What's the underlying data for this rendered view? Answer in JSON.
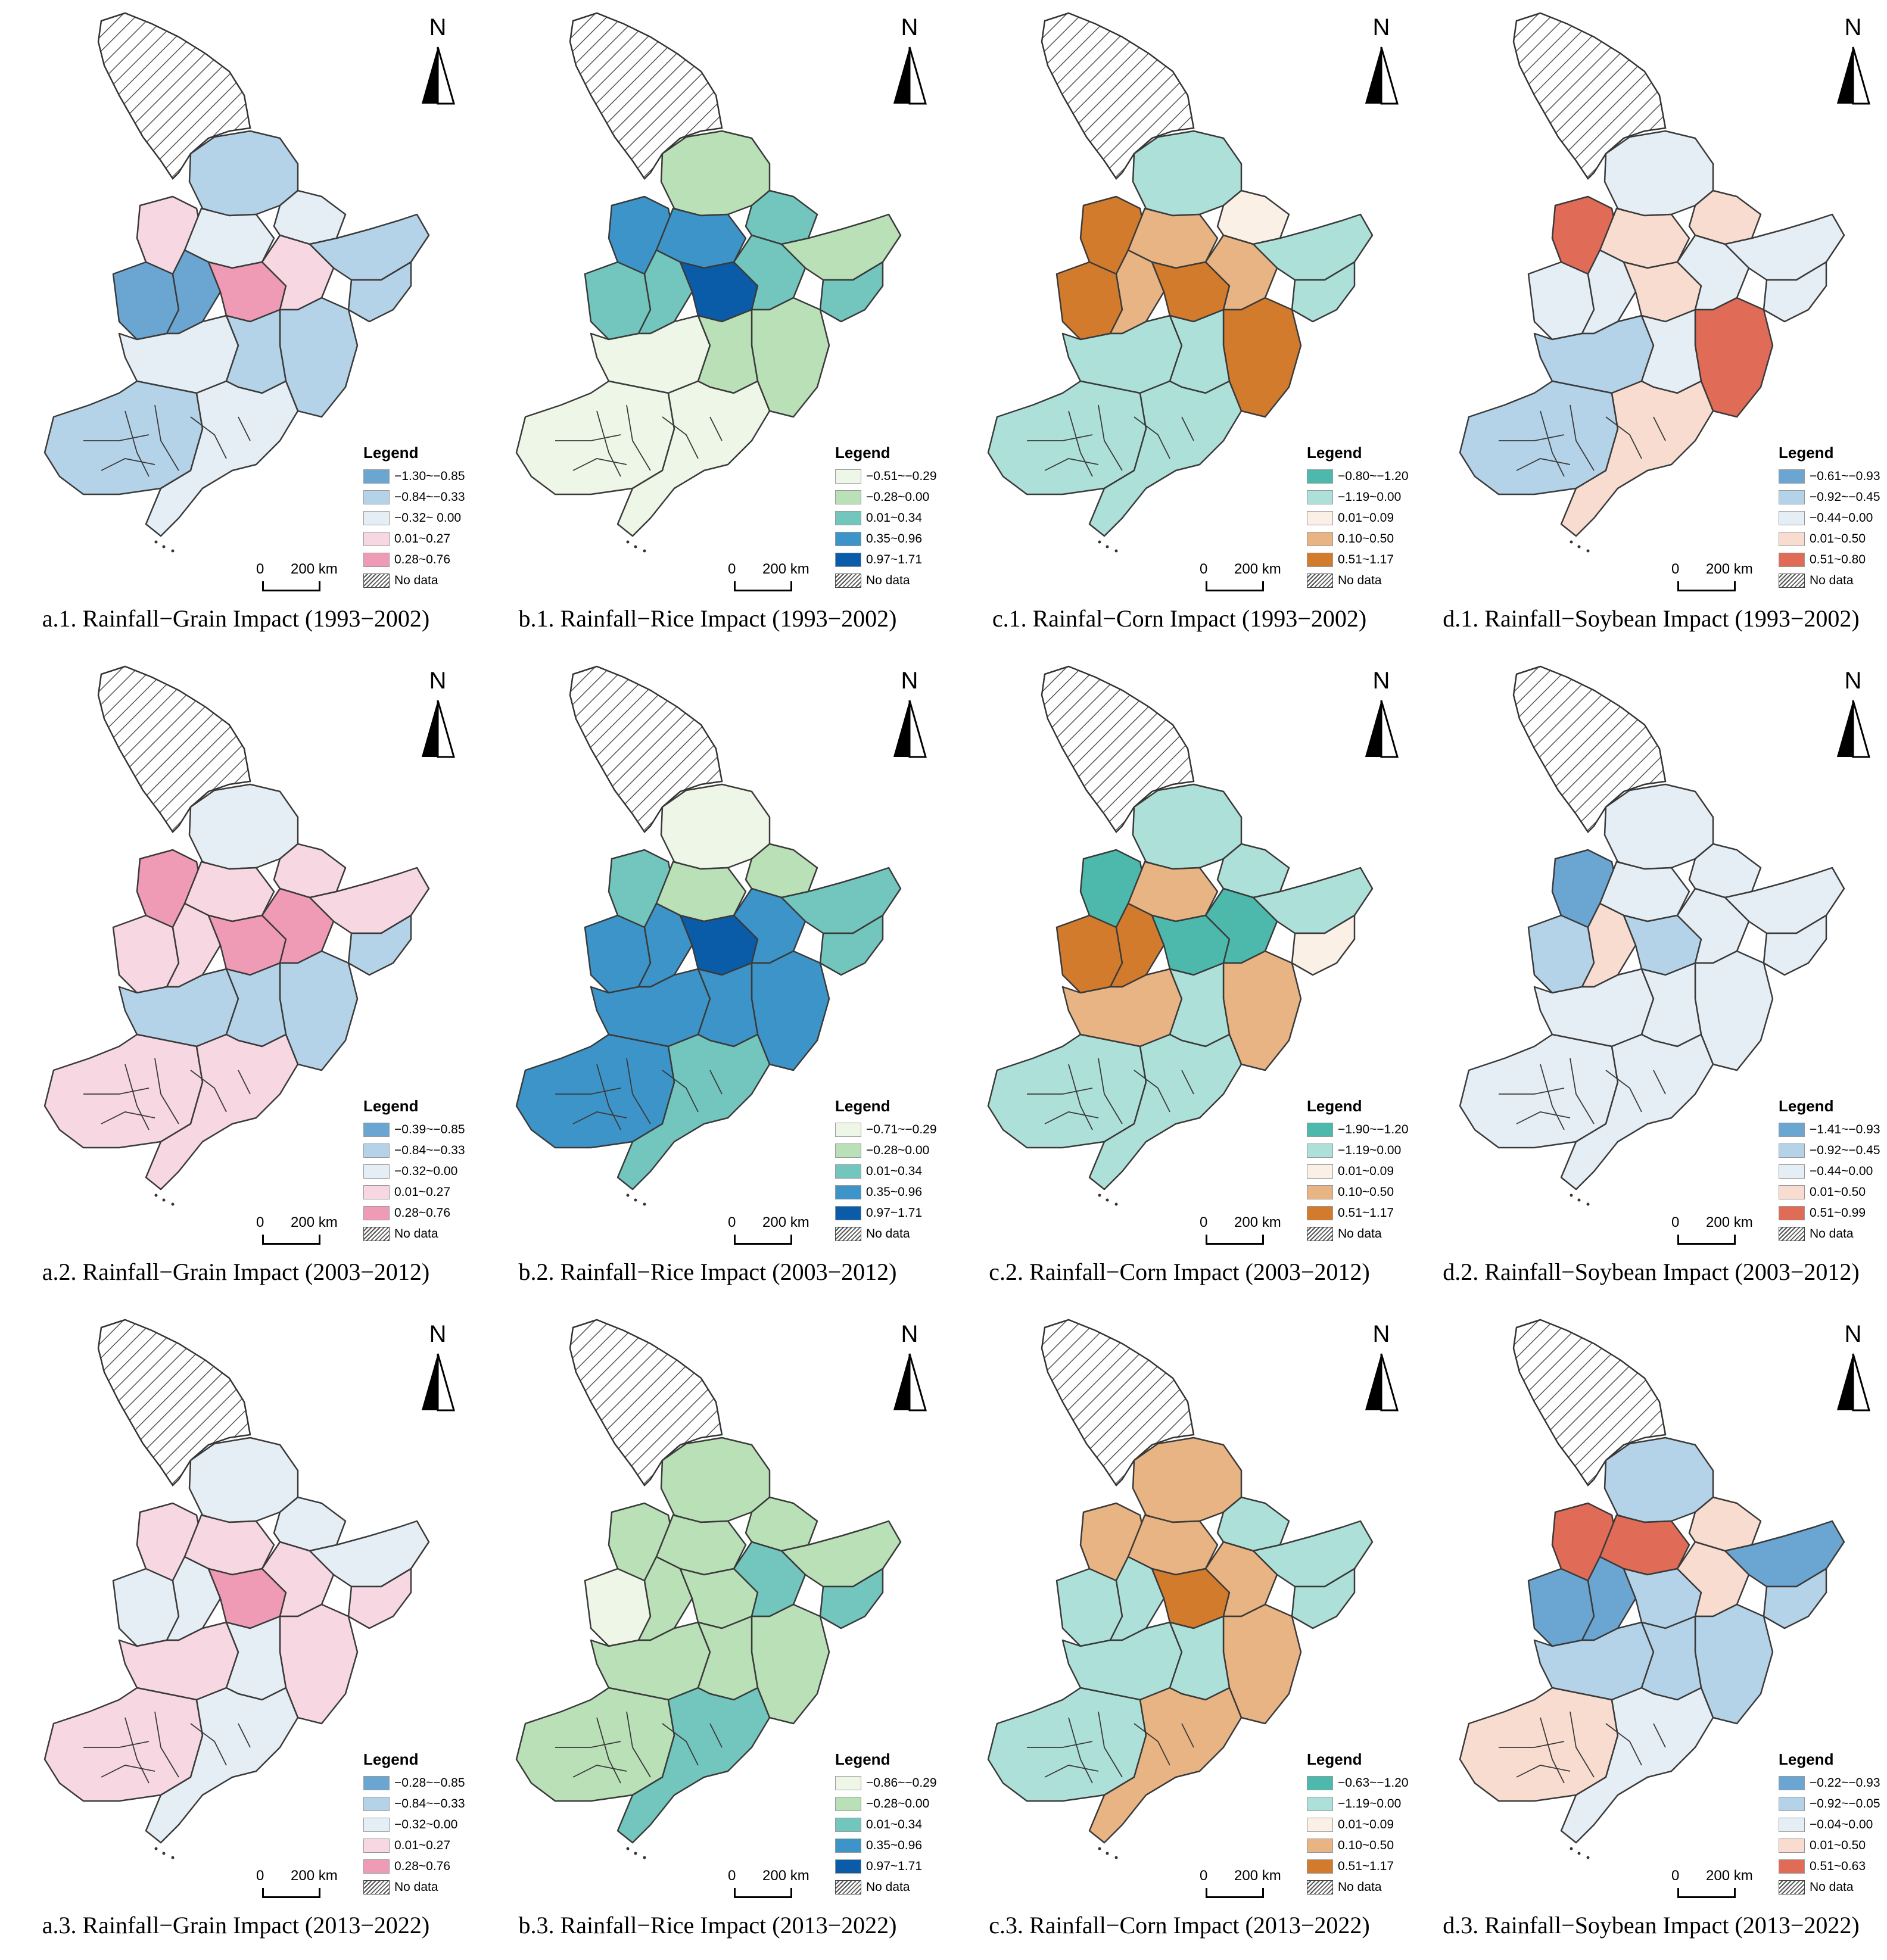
{
  "panels": [
    {
      "caption": "a.1. Rainfall−Grain Impact (1993−2002)",
      "legend_title": "Legend",
      "scheme": "grain",
      "legend": [
        "−1.30~−0.85",
        "−0.84~−0.33",
        "−0.32~ 0.00",
        "0.01~0.27",
        "0.28~0.76",
        "No data"
      ]
    },
    {
      "caption": "b.1. Rainfall−Rice Impact (1993−2002)",
      "legend_title": "Legend",
      "scheme": "rice",
      "legend": [
        "−0.51~−0.29",
        "−0.28~0.00",
        "0.01~0.34",
        "0.35~0.96",
        "0.97~1.71",
        "No data"
      ]
    },
    {
      "caption": "c.1. Rainfal−Corn Impact (1993−2002)",
      "legend_title": "Legend",
      "scheme": "corn",
      "legend": [
        "−0.80~−1.20",
        "−1.19~0.00",
        "0.01~0.09",
        "0.10~0.50",
        "0.51~1.17",
        "No data"
      ]
    },
    {
      "caption": "d.1. Rainfall−Soybean Impact (1993−2002)",
      "legend_title": "Legend",
      "scheme": "soy",
      "legend": [
        "−0.61~−0.93",
        "−0.92~−0.45",
        "−0.44~0.00",
        "0.01~0.50",
        "0.51~0.80",
        "No data"
      ]
    },
    {
      "caption": "a.2. Rainfall−Grain Impact (2003−2012)",
      "legend_title": "Legend",
      "scheme": "grain",
      "legend": [
        "−0.39~−0.85",
        "−0.84~−0.33",
        "−0.32~0.00",
        "0.01~0.27",
        "0.28~0.76",
        "No data"
      ]
    },
    {
      "caption": "b.2. Rainfall−Rice Impact (2003−2012)",
      "legend_title": "Legend",
      "scheme": "rice",
      "legend": [
        "−0.71~−0.29",
        "−0.28~0.00",
        "0.01~0.34",
        "0.35~0.96",
        "0.97~1.71",
        "No data"
      ]
    },
    {
      "caption": "c.2. Rainfall−Corn Impact (2003−2012)",
      "legend_title": "Legend",
      "scheme": "corn",
      "legend": [
        "−1.90~−1.20",
        "−1.19~0.00",
        "0.01~0.09",
        "0.10~0.50",
        "0.51~1.17",
        "No data"
      ]
    },
    {
      "caption": "d.2. Rainfall−Soybean Impact (2003−2012)",
      "legend_title": "Legend",
      "scheme": "soy",
      "legend": [
        "−1.41~−0.93",
        "−0.92~−0.45",
        "−0.44~0.00",
        "0.01~0.50",
        "0.51~0.99",
        "No data"
      ]
    },
    {
      "caption": "a.3. Rainfall−Grain Impact (2013−2022)",
      "legend_title": "Legend",
      "scheme": "grain",
      "legend": [
        "−0.28~−0.85",
        "−0.84~−0.33",
        "−0.32~0.00",
        "0.01~0.27",
        "0.28~0.76",
        "No data"
      ]
    },
    {
      "caption": "b.3. Rainfall−Rice Impact (2013−2022)",
      "legend_title": "Legend",
      "scheme": "rice",
      "legend": [
        "−0.86~−0.29",
        "−0.28~0.00",
        "0.01~0.34",
        "0.35~0.96",
        "0.97~1.71",
        "No data"
      ]
    },
    {
      "caption": "c.3. Rainfall−Corn Impact (2013−2022)",
      "legend_title": "Legend",
      "scheme": "corn",
      "legend": [
        "−0.63~−1.20",
        "−1.19~0.00",
        "0.01~0.09",
        "0.10~0.50",
        "0.51~1.17",
        "No data"
      ]
    },
    {
      "caption": "d.3. Rainfall−Soybean Impact (2013−2022)",
      "legend_title": "Legend",
      "scheme": "soy",
      "legend": [
        "−0.22~−0.93",
        "−0.92~−0.05",
        "−0.04~0.00",
        "0.01~0.50",
        "0.51~0.63",
        "No data"
      ]
    }
  ],
  "north_label": "N",
  "scale": {
    "zero": "0",
    "distance": "200 km"
  },
  "color_schemes": {
    "grain": [
      "#6aa6d1",
      "#b5d3e8",
      "#e6eef5",
      "#f7d7e1",
      "#f09bb6"
    ],
    "rice": [
      "#eef7e7",
      "#b9e0b7",
      "#72c6bd",
      "#3c94c8",
      "#0b5ca8"
    ],
    "corn": [
      "#4db9ad",
      "#aee0da",
      "#fbf0e6",
      "#e8b483",
      "#d27b2d"
    ],
    "soy": [
      "#6ba5d2",
      "#b5d3e8",
      "#e6eef5",
      "#f8dccf",
      "#e06b57"
    ]
  },
  "region_class_index": [
    [
      1,
      3,
      2,
      2,
      1,
      0,
      0,
      4,
      3,
      1,
      1,
      2,
      1,
      1,
      2
    ],
    [
      1,
      3,
      3,
      2,
      1,
      2,
      2,
      4,
      2,
      2,
      1,
      0,
      1,
      0,
      0
    ],
    [
      1,
      4,
      3,
      2,
      1,
      4,
      3,
      4,
      3,
      1,
      4,
      1,
      1,
      1,
      1
    ],
    [
      2,
      4,
      3,
      3,
      2,
      2,
      2,
      3,
      2,
      2,
      4,
      1,
      2,
      1,
      3
    ],
    [
      2,
      4,
      3,
      3,
      3,
      3,
      3,
      4,
      4,
      1,
      1,
      1,
      1,
      3,
      3
    ],
    [
      0,
      2,
      1,
      1,
      2,
      3,
      3,
      4,
      3,
      2,
      3,
      3,
      3,
      3,
      2
    ],
    [
      1,
      0,
      3,
      1,
      1,
      4,
      4,
      0,
      0,
      2,
      3,
      3,
      1,
      1,
      1
    ],
    [
      2,
      0,
      2,
      2,
      2,
      1,
      3,
      1,
      2,
      2,
      2,
      2,
      2,
      2,
      2
    ],
    [
      2,
      3,
      3,
      2,
      2,
      2,
      2,
      4,
      3,
      3,
      3,
      3,
      2,
      3,
      2
    ],
    [
      1,
      1,
      1,
      1,
      1,
      0,
      1,
      1,
      2,
      2,
      1,
      1,
      1,
      1,
      2
    ],
    [
      3,
      3,
      3,
      1,
      1,
      1,
      1,
      4,
      3,
      1,
      3,
      1,
      1,
      1,
      3
    ],
    [
      1,
      4,
      4,
      3,
      0,
      0,
      0,
      1,
      3,
      1,
      1,
      1,
      1,
      3,
      2
    ]
  ]
}
